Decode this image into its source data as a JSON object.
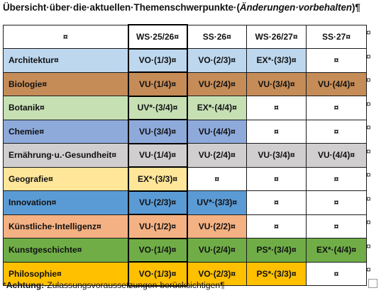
{
  "title": {
    "prefix": "Übersicht·über·die·aktuellen·Themenschwerpunkte·(",
    "italic": "Änderungen·vorbehalten",
    "suffix": ")¶"
  },
  "table": {
    "headers": [
      "¤",
      "WS·25/26¤",
      "SS·26¤",
      "WS·26/27¤",
      "SS·27¤"
    ],
    "rows": [
      {
        "name": "Architektur¤",
        "color": "#bdd7ee",
        "cells": [
          "VO·(1/3)¤",
          "VO·(2/3)¤",
          "EX*·(3/3)¤",
          "¤"
        ],
        "fills": [
          true,
          true,
          true,
          false
        ]
      },
      {
        "name": "Biologie¤",
        "color": "#c58c58",
        "cells": [
          "VU·(1/4)¤",
          "VU·(2/4)¤",
          "VU·(3/4)¤",
          "VU·(4/4)¤"
        ],
        "fills": [
          true,
          true,
          true,
          true
        ]
      },
      {
        "name": "Botanik¤",
        "color": "#c6e0b4",
        "cells": [
          "UV*·(3/4)¤",
          "EX*·(4/4)¤",
          "¤",
          "¤"
        ],
        "fills": [
          true,
          true,
          false,
          false
        ]
      },
      {
        "name": "Chemie¤",
        "color": "#8eaadb",
        "cells": [
          "VU·(3/4)¤",
          "VU·(4/4)¤",
          "¤",
          "¤"
        ],
        "fills": [
          true,
          true,
          false,
          false
        ]
      },
      {
        "name": "Ernährung·u.·Gesundheit¤",
        "color": "#d0cece",
        "cells": [
          "VU·(1/4)¤",
          "VU·(2/4)¤",
          "VU·(3/4)¤",
          "VU·(4/4)¤"
        ],
        "fills": [
          true,
          true,
          true,
          true
        ]
      },
      {
        "name": "Geografie¤",
        "color": "#ffe699",
        "cells": [
          "EX*·(3/3)¤",
          "¤",
          "¤",
          "¤"
        ],
        "fills": [
          true,
          false,
          false,
          false
        ]
      },
      {
        "name": "Innovation¤",
        "color": "#5b9bd5",
        "cells": [
          "VU·(2/3)¤",
          "UV*·(3/3)¤",
          "¤",
          "¤"
        ],
        "fills": [
          true,
          true,
          false,
          false
        ]
      },
      {
        "name": "Künstliche·Intelligenz¤",
        "color": "#f4b183",
        "cells": [
          "VU·(1/2)¤",
          "VU·(2/2)¤",
          "¤",
          "¤"
        ],
        "fills": [
          true,
          true,
          false,
          false
        ]
      },
      {
        "name": "Kunstgeschichte¤",
        "color": "#70ad47",
        "cells": [
          "VO·(1/4)¤",
          "VU·(2/4)¤",
          "PS*·(3/4)¤",
          "EX*·(4/4)¤"
        ],
        "fills": [
          true,
          true,
          true,
          true
        ]
      },
      {
        "name": "Philosophie¤",
        "color": "#ffc000",
        "cells": [
          "VO·(1/3)¤",
          "VO·(2/3)¤",
          "PS*·(3/3)¤",
          "¤"
        ],
        "fills": [
          true,
          true,
          true,
          false
        ]
      }
    ],
    "row_end_mark": "¤"
  },
  "footnote": {
    "star": "*",
    "label": "Achtung:",
    "text": "·Zulassungsvoraussetzungen·berücksichtigen¶"
  }
}
